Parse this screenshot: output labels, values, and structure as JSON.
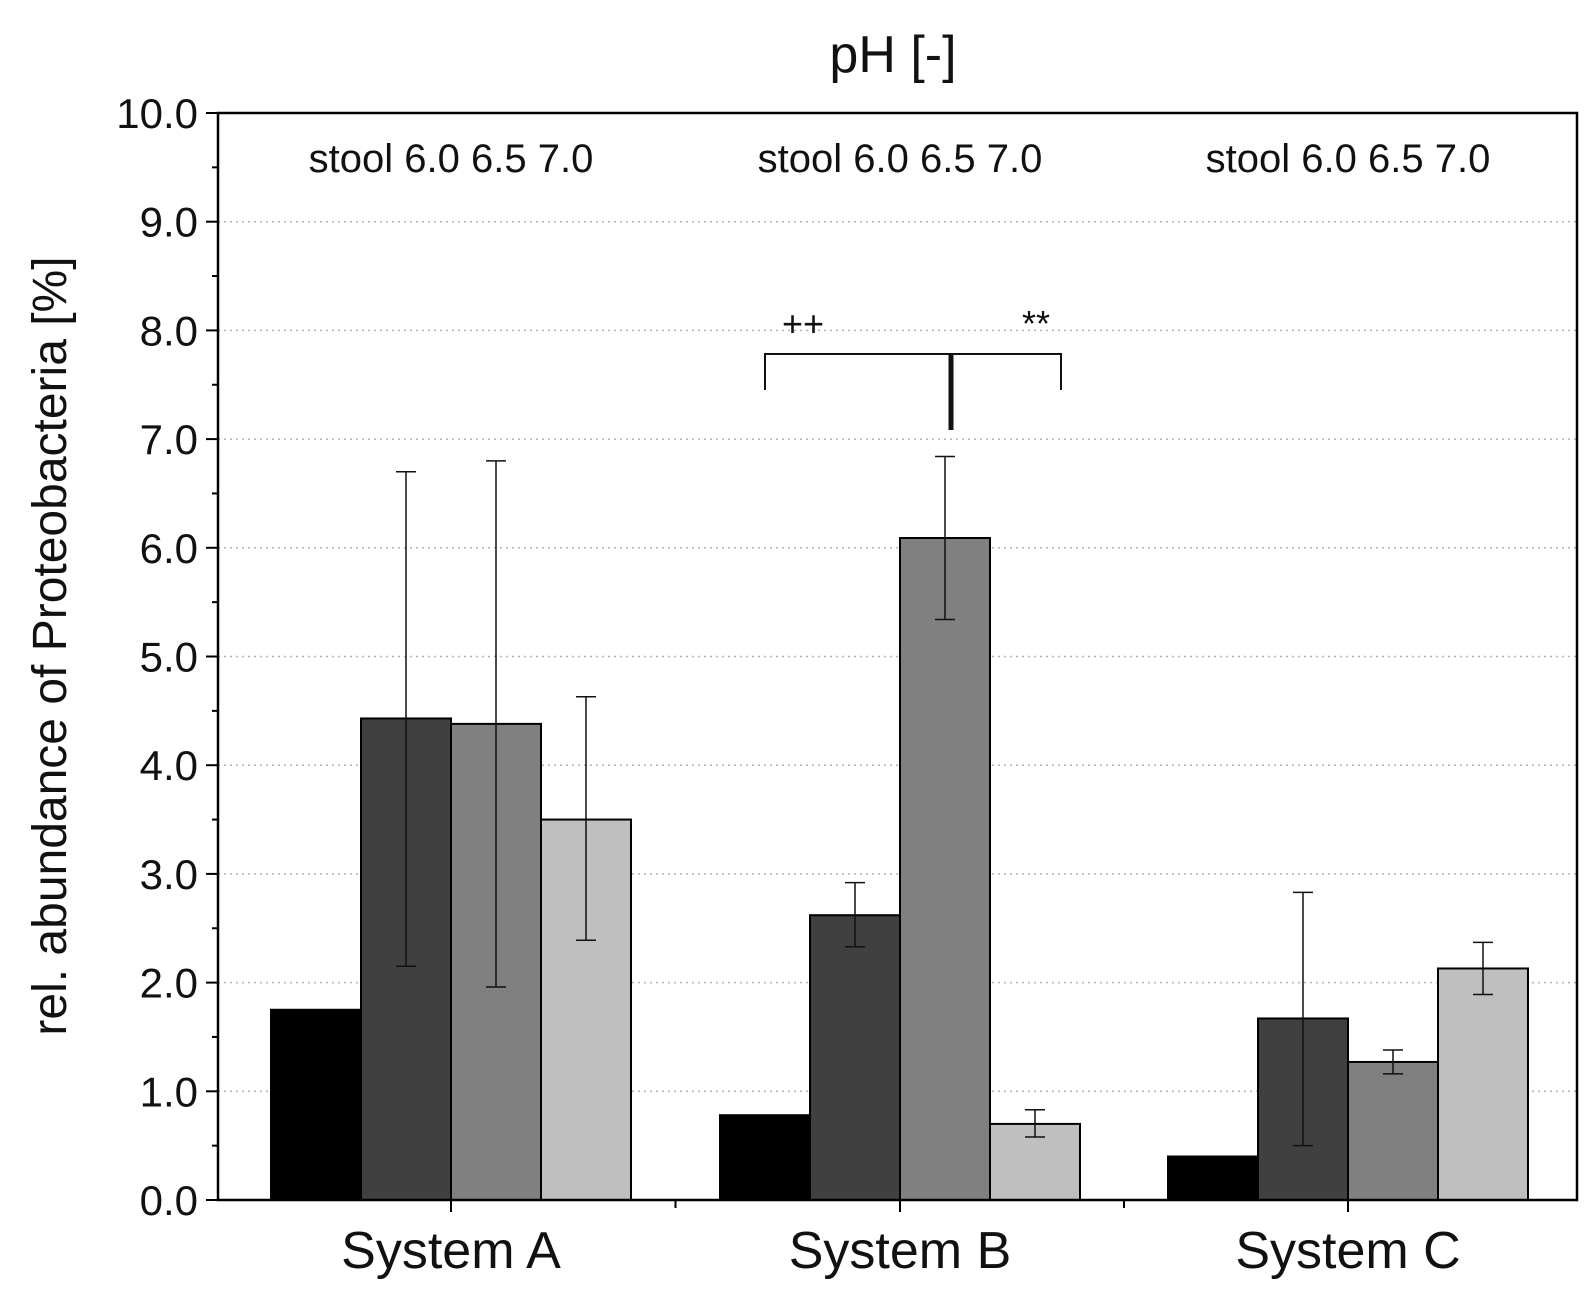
{
  "chart_data": {
    "type": "bar",
    "title": "pH [-]",
    "xlabel": "",
    "ylabel": "rel. abundance of Proteobacteria [%]",
    "ylim": [
      0,
      10
    ],
    "yticks": [
      "0.0",
      "1.0",
      "2.0",
      "3.0",
      "4.0",
      "5.0",
      "6.0",
      "7.0",
      "8.0",
      "9.0",
      "10.0"
    ],
    "grid": "horizontal dotted",
    "categories": [
      "System A",
      "System B",
      "System C"
    ],
    "series_labels": [
      "stool",
      "6.0",
      "6.5",
      "7.0"
    ],
    "series": [
      {
        "name": "stool",
        "color": "#000000",
        "values": [
          1.75,
          0.78,
          0.4
        ],
        "errors": [
          null,
          null,
          null
        ]
      },
      {
        "name": "6.0",
        "color": "#404040",
        "values": [
          4.43,
          2.62,
          1.67
        ],
        "errors": [
          [
            2.15,
            6.7
          ],
          [
            2.33,
            2.92
          ],
          [
            0.5,
            2.83
          ]
        ]
      },
      {
        "name": "6.5",
        "color": "#808080",
        "values": [
          4.38,
          6.09,
          1.27
        ],
        "errors": [
          [
            1.96,
            6.8
          ],
          [
            5.34,
            6.84
          ],
          [
            1.16,
            1.38
          ]
        ]
      },
      {
        "name": "7.0",
        "color": "#bfbfbf",
        "values": [
          3.5,
          0.7,
          2.13
        ],
        "errors": [
          [
            2.39,
            4.63
          ],
          [
            0.58,
            0.83
          ],
          [
            1.89,
            2.37
          ]
        ]
      }
    ],
    "annotations": [
      {
        "text": "++",
        "group": "System B"
      },
      {
        "text": "**",
        "group": "System B"
      }
    ]
  }
}
